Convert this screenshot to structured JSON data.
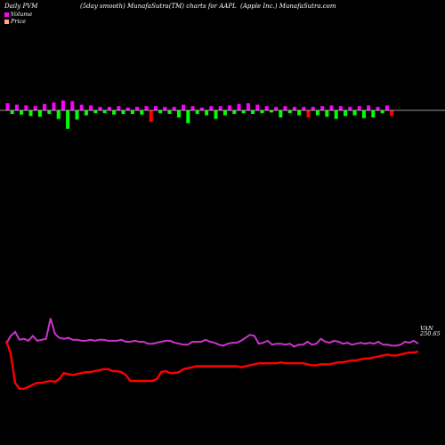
{
  "header": {
    "left": "Daily PVM",
    "middle": "(5day smooth) MunafaSutra(TM) charts for AAPL",
    "right": "(Apple  Inc.) MunafaSutra.com"
  },
  "legend": [
    {
      "label": "Volume",
      "color": "#ff00ff"
    },
    {
      "label": "Price",
      "color": "#ffaa88"
    }
  ],
  "colors": {
    "background": "#000000",
    "axis": "#cccccc",
    "volume_up": "#ff00ff",
    "volume_down": "#00ff00",
    "volume_red": "#ff0000",
    "volume_line": "#cc33cc",
    "price_line": "#ff0000"
  },
  "chart_data": {
    "type": "line",
    "title": "(5day smooth) MunafaSutra(TM) charts for AAPL",
    "xlabel": "",
    "ylabel": "",
    "price_labels": [
      "VAN",
      "250.65"
    ],
    "grid": false,
    "volume_bars": {
      "baseline_color": "#cccccc",
      "bars": [
        {
          "v": 1.0,
          "c": "up"
        },
        {
          "v": -0.5,
          "c": "down"
        },
        {
          "v": 0.8,
          "c": "up"
        },
        {
          "v": -0.6,
          "c": "down"
        },
        {
          "v": 0.7,
          "c": "up"
        },
        {
          "v": -0.8,
          "c": "down"
        },
        {
          "v": 0.6,
          "c": "up"
        },
        {
          "v": -0.9,
          "c": "down"
        },
        {
          "v": 0.9,
          "c": "up"
        },
        {
          "v": -0.5,
          "c": "down"
        },
        {
          "v": 1.1,
          "c": "up"
        },
        {
          "v": -1.2,
          "c": "down"
        },
        {
          "v": 1.4,
          "c": "up"
        },
        {
          "v": -2.6,
          "c": "down"
        },
        {
          "v": 1.3,
          "c": "up"
        },
        {
          "v": -1.3,
          "c": "down"
        },
        {
          "v": 0.8,
          "c": "up"
        },
        {
          "v": -0.7,
          "c": "down"
        },
        {
          "v": 0.7,
          "c": "up"
        },
        {
          "v": -0.4,
          "c": "down"
        },
        {
          "v": 0.5,
          "c": "up"
        },
        {
          "v": -0.4,
          "c": "down"
        },
        {
          "v": 0.5,
          "c": "up"
        },
        {
          "v": -0.6,
          "c": "down"
        },
        {
          "v": 0.6,
          "c": "up"
        },
        {
          "v": -0.5,
          "c": "down"
        },
        {
          "v": 0.4,
          "c": "up"
        },
        {
          "v": -0.5,
          "c": "down"
        },
        {
          "v": 0.5,
          "c": "up"
        },
        {
          "v": -0.6,
          "c": "down"
        },
        {
          "v": 0.6,
          "c": "up"
        },
        {
          "v": -1.6,
          "c": "red"
        },
        {
          "v": 0.6,
          "c": "up"
        },
        {
          "v": -0.4,
          "c": "down"
        },
        {
          "v": 0.5,
          "c": "up"
        },
        {
          "v": -0.5,
          "c": "down"
        },
        {
          "v": 0.5,
          "c": "up"
        },
        {
          "v": -1.0,
          "c": "down"
        },
        {
          "v": 0.8,
          "c": "up"
        },
        {
          "v": -1.8,
          "c": "down"
        },
        {
          "v": 0.6,
          "c": "up"
        },
        {
          "v": -0.5,
          "c": "down"
        },
        {
          "v": 0.4,
          "c": "up"
        },
        {
          "v": -0.7,
          "c": "down"
        },
        {
          "v": 0.6,
          "c": "up"
        },
        {
          "v": -1.2,
          "c": "down"
        },
        {
          "v": 0.6,
          "c": "up"
        },
        {
          "v": -0.7,
          "c": "down"
        },
        {
          "v": 0.7,
          "c": "up"
        },
        {
          "v": -0.5,
          "c": "down"
        },
        {
          "v": 0.9,
          "c": "up"
        },
        {
          "v": -0.4,
          "c": "down"
        },
        {
          "v": 1.0,
          "c": "up"
        },
        {
          "v": -0.5,
          "c": "down"
        },
        {
          "v": 0.8,
          "c": "up"
        },
        {
          "v": -0.4,
          "c": "down"
        },
        {
          "v": 0.6,
          "c": "up"
        },
        {
          "v": -0.3,
          "c": "down"
        },
        {
          "v": 0.5,
          "c": "up"
        },
        {
          "v": -1.0,
          "c": "down"
        },
        {
          "v": 0.6,
          "c": "up"
        },
        {
          "v": -0.4,
          "c": "down"
        },
        {
          "v": 0.5,
          "c": "up"
        },
        {
          "v": -0.7,
          "c": "down"
        },
        {
          "v": 0.5,
          "c": "up"
        },
        {
          "v": -1.0,
          "c": "red"
        },
        {
          "v": 0.5,
          "c": "up"
        },
        {
          "v": -0.7,
          "c": "down"
        },
        {
          "v": 0.6,
          "c": "up"
        },
        {
          "v": -0.9,
          "c": "down"
        },
        {
          "v": 0.7,
          "c": "up"
        },
        {
          "v": -1.2,
          "c": "down"
        },
        {
          "v": 0.6,
          "c": "up"
        },
        {
          "v": -0.8,
          "c": "down"
        },
        {
          "v": 0.5,
          "c": "up"
        },
        {
          "v": -0.7,
          "c": "down"
        },
        {
          "v": 0.6,
          "c": "up"
        },
        {
          "v": -1.1,
          "c": "down"
        },
        {
          "v": 0.7,
          "c": "up"
        },
        {
          "v": -1.0,
          "c": "down"
        },
        {
          "v": 0.5,
          "c": "up"
        },
        {
          "v": -0.4,
          "c": "down"
        },
        {
          "v": 0.7,
          "c": "up"
        },
        {
          "v": -0.8,
          "c": "red"
        }
      ]
    },
    "series": [
      {
        "role": "volume",
        "values": [
          58,
          66,
          70,
          62,
          63,
          61,
          66,
          61,
          62,
          63,
          84,
          68,
          64,
          63,
          64,
          62,
          62,
          61,
          61,
          62,
          61,
          62,
          62,
          61,
          61,
          61,
          62,
          60,
          60,
          61,
          60,
          60,
          58,
          58,
          59,
          60,
          61,
          61,
          59,
          58,
          57,
          57,
          60,
          60,
          60,
          62,
          60,
          59,
          57,
          56,
          58,
          59,
          59,
          61,
          64,
          67,
          66,
          58,
          59,
          61,
          57,
          58,
          58,
          57,
          58,
          55,
          57,
          57,
          60,
          57,
          58,
          63,
          60,
          59,
          61,
          60,
          58,
          59,
          57,
          58,
          59,
          58,
          59,
          58,
          60,
          57,
          57,
          56,
          56,
          57,
          60,
          59,
          61,
          58
        ]
      },
      {
        "role": "price",
        "values": [
          61,
          48,
          18,
          12,
          12,
          14,
          16,
          18,
          18,
          19,
          20,
          19,
          22,
          28,
          27,
          26,
          27,
          28,
          29,
          29,
          30,
          31,
          32,
          32,
          30,
          30,
          29,
          26,
          20,
          20,
          20,
          20,
          20,
          20,
          22,
          29,
          30,
          28,
          28,
          29,
          32,
          33,
          34,
          35,
          35,
          35,
          35,
          35,
          35,
          35,
          35,
          35,
          35,
          34,
          35,
          36,
          37,
          38,
          38,
          38,
          38,
          38,
          39,
          38,
          38,
          38,
          38,
          38,
          37,
          36,
          36,
          37,
          37,
          37,
          38,
          39,
          39,
          40,
          41,
          41,
          42,
          43,
          43,
          44,
          45,
          46,
          47,
          46,
          46,
          47,
          48,
          49,
          49,
          50
        ]
      }
    ]
  }
}
